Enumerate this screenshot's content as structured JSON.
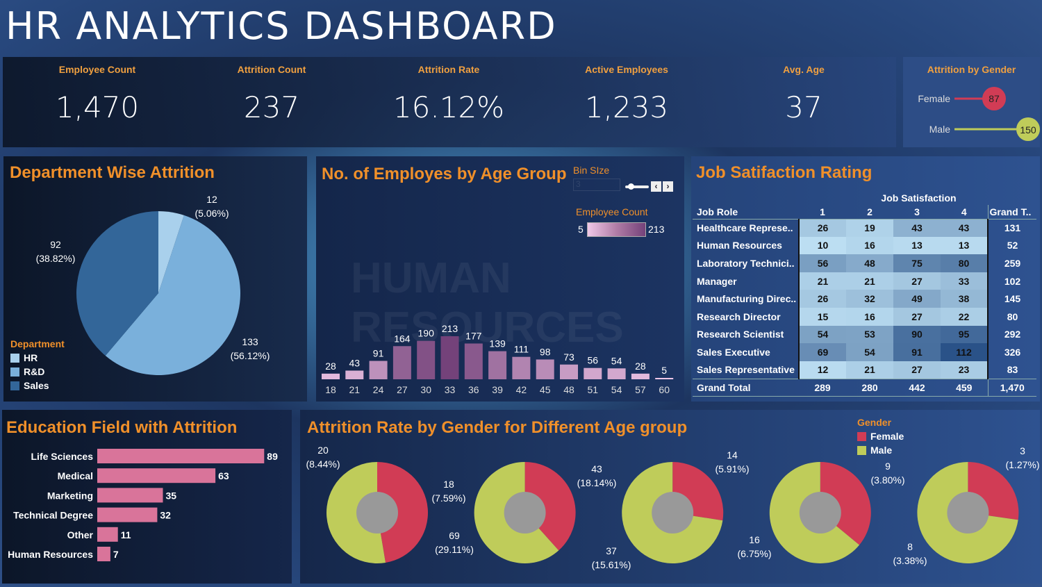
{
  "header": {
    "title": "HR ANALYTICS DASHBOARD"
  },
  "kpis": [
    {
      "label": "Employee Count",
      "value": "1,470"
    },
    {
      "label": "Attrition Count",
      "value": "237"
    },
    {
      "label": "Attrition Rate",
      "value": "16.12%"
    },
    {
      "label": "Active Employees",
      "value": "1,233"
    },
    {
      "label": "Avg. Age",
      "value": "37"
    }
  ],
  "colors": {
    "female": "#d13c55",
    "male": "#bfcc5a",
    "accent": "#f0902a",
    "hr": "#a9d0ec",
    "rd": "#7ab0db",
    "sales": "#336699"
  },
  "gender_attrition": {
    "title": "Attrition by Gender",
    "items": [
      {
        "label": "Female",
        "value": 87
      },
      {
        "label": "Male",
        "value": 150
      }
    ]
  },
  "department": {
    "title": "Department  Wise Attrition",
    "legend_title": "Department",
    "slices": [
      {
        "name": "HR",
        "value": 12,
        "pct": "(5.06%)"
      },
      {
        "name": "R&D",
        "value": 133,
        "pct": "(56.12%)"
      },
      {
        "name": "Sales",
        "value": 92,
        "pct": "(38.82%)"
      }
    ]
  },
  "age_group": {
    "title": "No. of Employes by Age Group",
    "bin_label": "Bin SIze",
    "bin_value": "3",
    "legend_title": "Employee Count",
    "legend_min": "5",
    "legend_max": "213",
    "chart_data": {
      "type": "bar",
      "categories": [
        "18",
        "21",
        "24",
        "27",
        "30",
        "33",
        "36",
        "39",
        "42",
        "45",
        "48",
        "51",
        "54",
        "57",
        "60"
      ],
      "values": [
        28,
        43,
        91,
        164,
        190,
        213,
        177,
        139,
        111,
        98,
        73,
        56,
        54,
        28,
        5
      ]
    },
    "watermark": "HUMAN RESOURCES"
  },
  "job_satisfaction": {
    "title": "Job Satifaction Rating",
    "col_header": "Job Satisfaction",
    "row_header": "Job Role",
    "columns": [
      "1",
      "2",
      "3",
      "4"
    ],
    "total_label": "Grand T..",
    "rows": [
      {
        "role": "Healthcare Represe..",
        "values": [
          26,
          19,
          43,
          43
        ],
        "total": "131"
      },
      {
        "role": "Human Resources",
        "values": [
          10,
          16,
          13,
          13
        ],
        "total": "52"
      },
      {
        "role": "Laboratory Technici..",
        "values": [
          56,
          48,
          75,
          80
        ],
        "total": "259"
      },
      {
        "role": "Manager",
        "values": [
          21,
          21,
          27,
          33
        ],
        "total": "102"
      },
      {
        "role": "Manufacturing Direc..",
        "values": [
          26,
          32,
          49,
          38
        ],
        "total": "145"
      },
      {
        "role": "Research Director",
        "values": [
          15,
          16,
          27,
          22
        ],
        "total": "80"
      },
      {
        "role": "Research Scientist",
        "values": [
          54,
          53,
          90,
          95
        ],
        "total": "292"
      },
      {
        "role": "Sales Executive",
        "values": [
          69,
          54,
          91,
          112
        ],
        "total": "326"
      },
      {
        "role": "Sales Representative",
        "values": [
          12,
          21,
          27,
          23
        ],
        "total": "83"
      }
    ],
    "grand_total": {
      "label": "Grand Total",
      "values": [
        "289",
        "280",
        "442",
        "459"
      ],
      "total": "1,470"
    }
  },
  "education": {
    "title": "Education Field with Attrition",
    "chart_data": {
      "type": "bar",
      "categories": [
        "Life Sciences",
        "Medical",
        "Marketing",
        "Technical Degree",
        "Other",
        "Human Resources"
      ],
      "values": [
        89,
        63,
        35,
        32,
        11,
        7
      ]
    },
    "color": "#d9749a"
  },
  "gender_age": {
    "title": "Attrition Rate by Gender for Different Age group",
    "legend_title": "Gender",
    "legend": [
      "Female",
      "Male"
    ],
    "chart_data": {
      "type": "pie",
      "groups": [
        {
          "female": 18,
          "female_pct": "(7.59%)",
          "male": 20,
          "male_pct": "(8.44%)"
        },
        {
          "female": 43,
          "female_pct": "(18.14%)",
          "male": 69,
          "male_pct": "(29.11%)"
        },
        {
          "female": 14,
          "female_pct": "(5.91%)",
          "male": 37,
          "male_pct": "(15.61%)"
        },
        {
          "female": 9,
          "female_pct": "(3.80%)",
          "male": 16,
          "male_pct": "(6.75%)"
        },
        {
          "female": 3,
          "female_pct": "(1.27%)",
          "male": 8,
          "male_pct": "(3.38%)"
        }
      ]
    }
  }
}
